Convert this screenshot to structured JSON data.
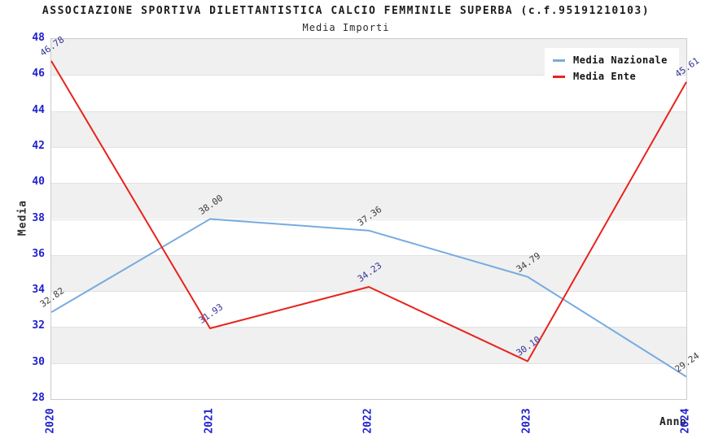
{
  "chart_data": {
    "type": "line",
    "title": "ASSOCIAZIONE SPORTIVA DILETTANTISTICA CALCIO FEMMINILE SUPERBA (c.f.95191210103)",
    "subtitle": "Media Importi",
    "xlabel": "Anno",
    "ylabel": "Media",
    "categories": [
      "2020",
      "2021",
      "2022",
      "2023",
      "2024"
    ],
    "series": [
      {
        "name": "Media Nazionale",
        "color": "#78abe0",
        "label_color": "#3c3c3c",
        "values": [
          32.82,
          38.0,
          37.36,
          34.79,
          29.24
        ]
      },
      {
        "name": "Media Ente",
        "color": "#e8231d",
        "label_color": "#333399",
        "values": [
          46.78,
          31.93,
          34.23,
          30.1,
          45.61
        ]
      }
    ],
    "ylim": [
      28,
      48
    ],
    "ytick_step": 2,
    "grid": "horizontal-bands",
    "legend_position": "top-right",
    "colors": {
      "tick_label": "#2121cd",
      "band": "#f0f0f0",
      "gridline": "#e2e2e2",
      "plot_border": "#cbcbcb",
      "title": "#1c1c1c"
    }
  }
}
